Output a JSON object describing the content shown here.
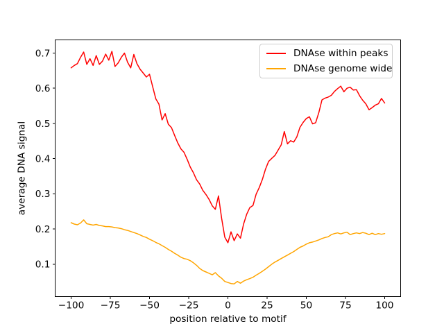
{
  "figure": {
    "background": "#ffffff",
    "frame_color": "#000000"
  },
  "chart_data": {
    "type": "line",
    "title": "",
    "xlabel": "position relative to motif",
    "ylabel": "average DNA signal",
    "xlim": [
      -110.2,
      110.2
    ],
    "ylim": [
      0.008,
      0.7375
    ],
    "xticks": [
      -100,
      -75,
      -50,
      -25,
      0,
      25,
      50,
      75,
      100
    ],
    "xtick_labels": [
      "−100",
      "−75",
      "−50",
      "−25",
      "0",
      "25",
      "50",
      "75",
      "100"
    ],
    "yticks": [
      0.1,
      0.2,
      0.3,
      0.4,
      0.5,
      0.6,
      0.7
    ],
    "ytick_labels": [
      "0.1",
      "0.2",
      "0.3",
      "0.4",
      "0.5",
      "0.6",
      "0.7"
    ],
    "grid": false,
    "legend": {
      "position": "upper right",
      "entries": [
        "DNAse within peaks",
        "DNAse genome wide"
      ]
    },
    "x": [
      -100,
      -98,
      -96,
      -94,
      -92,
      -90,
      -88,
      -86,
      -84,
      -82,
      -80,
      -78,
      -76,
      -74,
      -72,
      -70,
      -68,
      -66,
      -64,
      -62,
      -60,
      -58,
      -56,
      -54,
      -52,
      -50,
      -48,
      -46,
      -44,
      -42,
      -40,
      -38,
      -36,
      -34,
      -32,
      -30,
      -28,
      -26,
      -24,
      -22,
      -20,
      -18,
      -16,
      -14,
      -12,
      -10,
      -8,
      -6,
      -4,
      -2,
      0,
      2,
      4,
      6,
      8,
      10,
      12,
      14,
      16,
      18,
      20,
      22,
      24,
      26,
      28,
      30,
      32,
      34,
      36,
      38,
      40,
      42,
      44,
      46,
      48,
      50,
      52,
      54,
      56,
      58,
      60,
      62,
      64,
      66,
      68,
      70,
      72,
      74,
      76,
      78,
      80,
      82,
      84,
      86,
      88,
      90,
      92,
      94,
      96,
      98,
      100
    ],
    "series": [
      {
        "name": "DNAse within peaks",
        "color": "#ff0000",
        "values": [
          0.658,
          0.665,
          0.67,
          0.688,
          0.703,
          0.668,
          0.684,
          0.665,
          0.693,
          0.668,
          0.677,
          0.697,
          0.68,
          0.705,
          0.662,
          0.672,
          0.688,
          0.7,
          0.674,
          0.658,
          0.696,
          0.67,
          0.654,
          0.643,
          0.632,
          0.64,
          0.605,
          0.57,
          0.555,
          0.51,
          0.528,
          0.498,
          0.488,
          0.466,
          0.445,
          0.428,
          0.418,
          0.398,
          0.376,
          0.36,
          0.34,
          0.328,
          0.31,
          0.298,
          0.284,
          0.266,
          0.256,
          0.294,
          0.23,
          0.177,
          0.161,
          0.192,
          0.167,
          0.186,
          0.174,
          0.214,
          0.242,
          0.261,
          0.267,
          0.299,
          0.318,
          0.341,
          0.37,
          0.392,
          0.401,
          0.409,
          0.424,
          0.439,
          0.477,
          0.442,
          0.451,
          0.447,
          0.462,
          0.489,
          0.503,
          0.514,
          0.519,
          0.499,
          0.502,
          0.531,
          0.567,
          0.572,
          0.575,
          0.58,
          0.591,
          0.599,
          0.606,
          0.59,
          0.6,
          0.603,
          0.595,
          0.596,
          0.579,
          0.566,
          0.556,
          0.539,
          0.545,
          0.552,
          0.556,
          0.571,
          0.558
        ]
      },
      {
        "name": "DNAse genome wide",
        "color": "#ffa500",
        "values": [
          0.218,
          0.214,
          0.212,
          0.217,
          0.226,
          0.215,
          0.213,
          0.211,
          0.213,
          0.21,
          0.209,
          0.207,
          0.207,
          0.206,
          0.204,
          0.203,
          0.201,
          0.198,
          0.196,
          0.193,
          0.19,
          0.187,
          0.183,
          0.179,
          0.176,
          0.171,
          0.167,
          0.162,
          0.158,
          0.153,
          0.148,
          0.142,
          0.137,
          0.131,
          0.126,
          0.12,
          0.116,
          0.114,
          0.11,
          0.104,
          0.097,
          0.088,
          0.082,
          0.078,
          0.074,
          0.07,
          0.076,
          0.067,
          0.06,
          0.051,
          0.048,
          0.045,
          0.044,
          0.051,
          0.046,
          0.052,
          0.056,
          0.059,
          0.063,
          0.069,
          0.074,
          0.08,
          0.086,
          0.093,
          0.1,
          0.106,
          0.111,
          0.116,
          0.121,
          0.126,
          0.131,
          0.136,
          0.142,
          0.148,
          0.152,
          0.157,
          0.161,
          0.163,
          0.166,
          0.169,
          0.173,
          0.176,
          0.178,
          0.184,
          0.187,
          0.189,
          0.186,
          0.189,
          0.191,
          0.184,
          0.187,
          0.189,
          0.187,
          0.19,
          0.188,
          0.184,
          0.188,
          0.184,
          0.187,
          0.185,
          0.187
        ]
      }
    ]
  }
}
